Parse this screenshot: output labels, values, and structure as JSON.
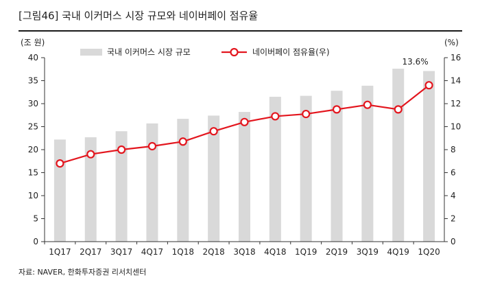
{
  "title": "[그림46]  국내 이커머스 시장 규모와 네이버페이 점유율",
  "source": "자료: NAVER, 한화투자증권 리서치센터",
  "colors": {
    "bar": "#d9d9d9",
    "line": "#e3161e",
    "axis": "#333333"
  },
  "chart_data": {
    "type": "bar+line",
    "categories": [
      "1Q17",
      "2Q17",
      "3Q17",
      "4Q17",
      "1Q18",
      "2Q18",
      "3Q18",
      "4Q18",
      "1Q19",
      "2Q19",
      "3Q19",
      "4Q19",
      "1Q20"
    ],
    "left_unit": "(조 원)",
    "right_unit": "(%)",
    "left_ylim": [
      0,
      40
    ],
    "left_ticks": [
      0,
      5,
      10,
      15,
      20,
      25,
      30,
      35,
      40
    ],
    "right_ylim": [
      0,
      16
    ],
    "right_ticks": [
      0,
      2,
      4,
      6,
      8,
      10,
      12,
      14,
      16
    ],
    "legend_placement": "top",
    "series": [
      {
        "name": "국내 이커머스 시장 규모",
        "type": "bar",
        "axis": "left",
        "values": [
          22.2,
          22.7,
          24.0,
          25.7,
          26.7,
          27.4,
          28.2,
          31.5,
          31.7,
          32.8,
          33.9,
          37.6,
          37.1
        ]
      },
      {
        "name": "네이버페이 점유율(우)",
        "type": "line",
        "axis": "right",
        "values": [
          6.8,
          7.6,
          8.0,
          8.3,
          8.7,
          9.6,
          10.4,
          10.9,
          11.1,
          11.5,
          11.9,
          11.5,
          13.6
        ]
      }
    ],
    "annotations": [
      {
        "series": 1,
        "index": 12,
        "text": "13.6%"
      }
    ]
  }
}
